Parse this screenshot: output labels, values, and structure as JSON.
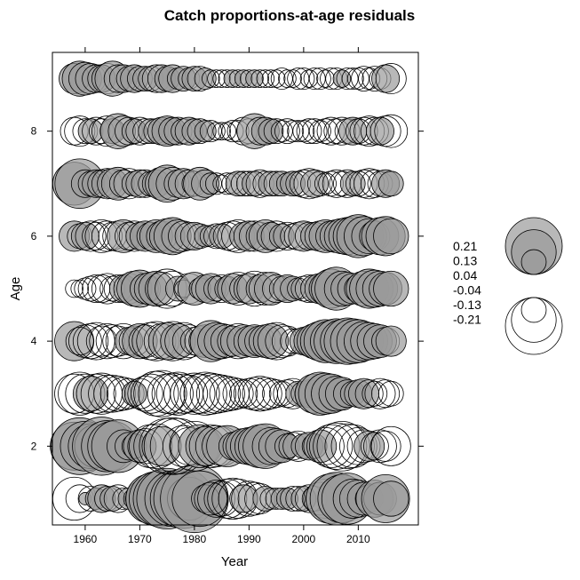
{
  "chart_data": {
    "type": "scatter",
    "title": "Catch proportions-at-age residuals",
    "xlabel": "Year",
    "ylabel": "Age",
    "xlim": [
      1954,
      2021
    ],
    "ylim": [
      0.5,
      9.5
    ],
    "x_ticks": [
      1960,
      1970,
      1980,
      1990,
      2000,
      2010
    ],
    "y_ticks": [
      2,
      4,
      6,
      8
    ],
    "legend": {
      "position": "right",
      "entries": [
        "0.21",
        "0.13",
        "0.04",
        "-0.04",
        "-0.13",
        "-0.21"
      ],
      "values": [
        0.21,
        0.13,
        0.04,
        -0.04,
        -0.13,
        -0.21
      ]
    },
    "colors": {
      "positive_fill": "#9a9a9a",
      "positive_fill_opacity": 0.7,
      "negative_fill": "#ffffff",
      "stroke": "#000000"
    },
    "years": [
      1958,
      1959,
      1960,
      1961,
      1962,
      1963,
      1964,
      1965,
      1966,
      1967,
      1968,
      1969,
      1970,
      1971,
      1972,
      1973,
      1974,
      1975,
      1976,
      1977,
      1978,
      1979,
      1980,
      1981,
      1982,
      1983,
      1984,
      1985,
      1986,
      1987,
      1988,
      1989,
      1990,
      1991,
      1992,
      1993,
      1994,
      1995,
      1996,
      1997,
      1998,
      1999,
      2000,
      2001,
      2002,
      2003,
      2004,
      2005,
      2006,
      2007,
      2008,
      2009,
      2010,
      2011,
      2012,
      2013,
      2014,
      2015,
      2016
    ],
    "ages": [
      1,
      2,
      3,
      4,
      5,
      6,
      7,
      8,
      9
    ],
    "residuals": [
      [
        -0.12,
        -0.05,
        0.01,
        -0.04,
        0.03,
        0.05,
        -0.04,
        0.04,
        -0.05,
        -0.03,
        0.03,
        -0.03,
        0.05,
        0.1,
        0.16,
        0.19,
        0.21,
        0.24,
        0.2,
        0.2,
        0.23,
        0.12,
        0.3,
        0.2,
        0.05,
        0.07,
        -0.09,
        -0.08,
        -0.1,
        -0.11,
        -0.1,
        0.05,
        -0.08,
        -0.07,
        -0.06,
        0.04,
        -0.03,
        -0.03,
        0.03,
        0.03,
        -0.04,
        -0.04,
        0.04,
        -0.05,
        -0.04,
        -0.07,
        -0.1,
        0.16,
        0.18,
        0.15,
        0.17,
        -0.1,
        -0.09,
        0.07,
        0.05,
        0.09,
        0.07,
        0.15,
        0.08
      ],
      [
        0.15,
        0.21,
        0.16,
        0.13,
        0.12,
        0.22,
        0.17,
        0.16,
        0.18,
        0.07,
        0.05,
        0.04,
        0.07,
        -0.08,
        -0.12,
        -0.13,
        0.1,
        -0.2,
        -0.21,
        -0.2,
        -0.11,
        -0.09,
        -0.16,
        0.12,
        0.1,
        -0.12,
        -0.11,
        -0.1,
        0.11,
        0.05,
        0.06,
        0.08,
        0.09,
        0.1,
        0.12,
        0.13,
        -0.09,
        0.08,
        0.07,
        0.04,
        -0.05,
        -0.06,
        0.04,
        0.05,
        0.04,
        0.07,
        -0.09,
        -0.12,
        -0.14,
        -0.16,
        -0.13,
        -0.12,
        -0.09,
        -0.07,
        0.06,
        -0.05,
        -0.07,
        -0.06,
        -0.1
      ],
      [
        -0.1,
        -0.12,
        -0.1,
        0.08,
        -0.1,
        -0.11,
        -0.09,
        -0.09,
        -0.08,
        -0.07,
        -0.06,
        0.04,
        -0.06,
        -0.08,
        -0.1,
        -0.13,
        -0.14,
        -0.1,
        -0.11,
        -0.12,
        -0.1,
        -0.09,
        -0.11,
        -0.1,
        -0.12,
        -0.11,
        -0.1,
        -0.09,
        -0.08,
        -0.07,
        -0.06,
        -0.05,
        -0.06,
        -0.07,
        -0.08,
        -0.07,
        -0.06,
        -0.05,
        -0.04,
        -0.05,
        -0.06,
        0.04,
        -0.04,
        0.05,
        0.1,
        0.12,
        0.11,
        0.1,
        0.08,
        0.07,
        0.05,
        0.04,
        0.05,
        0.06,
        -0.05,
        -0.04,
        -0.06,
        -0.05,
        -0.04
      ],
      [
        0.1,
        -0.05,
        -0.07,
        -0.08,
        -0.09,
        -0.06,
        -0.08,
        -0.07,
        -0.06,
        -0.08,
        0.05,
        -0.06,
        0.08,
        -0.07,
        -0.09,
        -0.1,
        -0.08,
        0.09,
        -0.1,
        0.08,
        -0.09,
        -0.07,
        -0.05,
        -0.06,
        0.07,
        0.11,
        0.09,
        -0.08,
        -0.07,
        0.06,
        -0.08,
        0.07,
        0.06,
        0.07,
        -0.06,
        0.07,
        0.08,
        -0.09,
        -0.07,
        -0.06,
        -0.04,
        -0.04,
        0.05,
        0.06,
        0.08,
        0.1,
        0.12,
        0.11,
        0.13,
        0.12,
        0.14,
        0.13,
        0.12,
        0.1,
        0.09,
        0.08,
        0.07,
        -0.05,
        0.06
      ],
      [
        -0.02,
        -0.02,
        -0.03,
        -0.04,
        -0.05,
        -0.05,
        -0.06,
        -0.04,
        -0.05,
        0.05,
        -0.06,
        0.08,
        0.09,
        -0.06,
        0.07,
        0.08,
        -0.07,
        -0.1,
        -0.08,
        0.04,
        -0.02,
        -0.06,
        0.07,
        -0.03,
        0.05,
        0.06,
        -0.04,
        -0.05,
        0.04,
        0.06,
        -0.07,
        -0.05,
        0.06,
        -0.08,
        0.05,
        -0.07,
        0.07,
        -0.05,
        -0.04,
        0.05,
        0.04,
        -0.03,
        -0.04,
        -0.05,
        0.05,
        0.06,
        0.07,
        0.1,
        0.12,
        0.08,
        0.07,
        -0.06,
        0.05,
        0.08,
        0.1,
        0.09,
        0.08,
        0.07,
        0.08
      ],
      [
        0.06,
        -0.04,
        0.05,
        -0.06,
        -0.05,
        -0.07,
        -0.06,
        -0.05,
        -0.06,
        0.07,
        -0.05,
        -0.06,
        0.05,
        0.06,
        -0.05,
        0.07,
        -0.06,
        0.08,
        0.09,
        -0.07,
        -0.06,
        -0.05,
        0.05,
        -0.04,
        0.03,
        -0.03,
        -0.04,
        0.04,
        -0.05,
        -0.06,
        -0.07,
        0.05,
        0.06,
        -0.06,
        -0.05,
        0.07,
        0.05,
        -0.06,
        0.04,
        -0.05,
        -0.04,
        -0.05,
        0.06,
        -0.05,
        0.05,
        -0.06,
        0.07,
        0.06,
        -0.07,
        0.08,
        0.09,
        -0.1,
        0.12,
        0.1,
        0.08,
        -0.06,
        0.09,
        0.1,
        0.08
      ],
      [
        0.12,
        0.16,
        0.05,
        -0.04,
        0.05,
        -0.05,
        -0.06,
        0.06,
        0.07,
        -0.05,
        -0.06,
        0.04,
        0.05,
        -0.05,
        -0.04,
        0.05,
        0.07,
        0.09,
        -0.07,
        -0.05,
        0.06,
        -0.05,
        -0.04,
        0.07,
        0.05,
        -0.03,
        -0.03,
        -0.02,
        -0.03,
        -0.03,
        0.04,
        -0.04,
        -0.04,
        0.04,
        -0.05,
        -0.04,
        0.04,
        -0.04,
        0.04,
        -0.03,
        0.04,
        -0.04,
        -0.05,
        -0.06,
        0.05,
        -0.04,
        -0.03,
        -0.04,
        -0.05,
        -0.04,
        -0.05,
        0.04,
        -0.04,
        -0.05,
        -0.06,
        -0.05,
        -0.04,
        0.05,
        0.04
      ],
      [
        -0.05,
        -0.06,
        -0.04,
        0.04,
        -0.05,
        -0.04,
        -0.06,
        0.04,
        0.08,
        -0.06,
        -0.05,
        0.04,
        -0.05,
        -0.04,
        0.04,
        -0.04,
        0.05,
        0.06,
        0.05,
        -0.05,
        -0.04,
        0.05,
        0.04,
        -0.04,
        0.03,
        -0.03,
        -0.02,
        -0.02,
        -0.02,
        -0.03,
        -0.03,
        -0.05,
        -0.04,
        0.08,
        -0.05,
        0.05,
        0.04,
        -0.04,
        -0.03,
        -0.04,
        -0.03,
        -0.03,
        -0.03,
        -0.04,
        -0.04,
        -0.03,
        -0.04,
        -0.05,
        -0.04,
        -0.05,
        -0.04,
        0.05,
        -0.04,
        -0.05,
        -0.06,
        -0.05,
        0.05,
        -0.06,
        -0.07
      ],
      [
        0.06,
        0.08,
        0.07,
        -0.06,
        -0.05,
        0.05,
        -0.06,
        0.08,
        -0.05,
        0.05,
        -0.04,
        0.05,
        -0.04,
        0.04,
        -0.04,
        -0.05,
        0.05,
        0.04,
        0.05,
        -0.03,
        0.04,
        -0.03,
        0.04,
        -0.04,
        0.03,
        -0.02,
        -0.02,
        -0.02,
        -0.02,
        0.02,
        -0.02,
        0.02,
        -0.02,
        0.02,
        -0.02,
        -0.02,
        -0.02,
        -0.02,
        -0.03,
        -0.02,
        -0.02,
        -0.03,
        -0.03,
        -0.02,
        -0.03,
        -0.03,
        -0.02,
        -0.03,
        -0.03,
        0.02,
        -0.03,
        -0.03,
        -0.03,
        -0.04,
        -0.03,
        -0.04,
        -0.03,
        0.05,
        -0.06
      ]
    ]
  }
}
